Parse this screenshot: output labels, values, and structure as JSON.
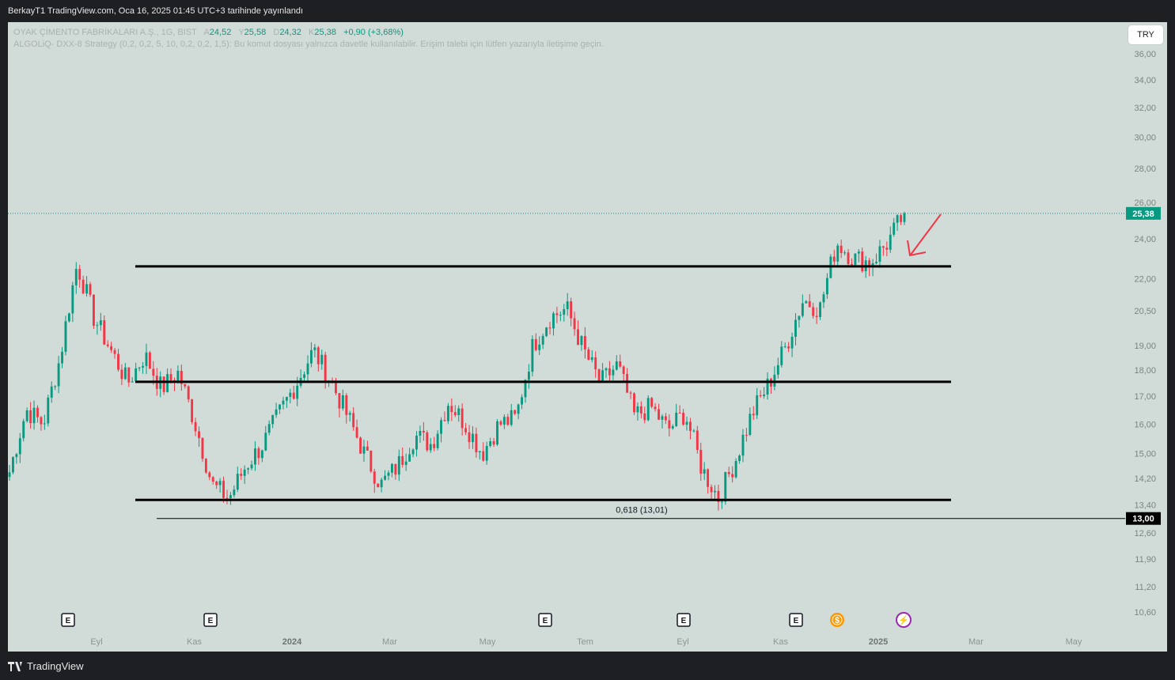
{
  "header": {
    "publish_text": "BerkayT1 TradingView.com, Oca 16, 2025 01:45 UTC+3 tarihinde yayınlandı"
  },
  "legend": {
    "symbol": "OYAK ÇİMENTO FABRİKALARI A.Ş., 1G, BIST",
    "a_label": "A",
    "a_value": "24,52",
    "y_label": "Y",
    "y_value": "25,58",
    "d_label": "D",
    "d_value": "24,32",
    "k_label": "K",
    "k_value": "25,38",
    "change": "+0,90 (+3,68%)",
    "indicator": "ALGOLiQ- DXX-8 Strategy (0,2, 0,2, 5, 10, 0,2, 0,2, 1,5): Bu komut dosyası yalnızca davetle kullanılabilir. Erişim talebi için lütfen yazarıyla iletişime geçin."
  },
  "currency_button": "TRY",
  "footer": {
    "brand": "TradingView"
  },
  "colors": {
    "up": "#089981",
    "down": "#f23645",
    "background": "#d1dbd8",
    "frame": "#1e1f23",
    "arrow": "#f23645"
  },
  "chart_data": {
    "type": "candlestick",
    "price_axis_labels": [
      "36,00",
      "34,00",
      "32,00",
      "30,00",
      "28,00",
      "26,00",
      "24,00",
      "22,00",
      "20,50",
      "19,00",
      "18,00",
      "17,00",
      "16,00",
      "15,00",
      "14,20",
      "13,40",
      "12,60",
      "11,90",
      "11,20",
      "10,60"
    ],
    "price_axis_scale": "log",
    "time_axis_labels": [
      {
        "label": "Eyl",
        "bold": false
      },
      {
        "label": "Kas",
        "bold": false
      },
      {
        "label": "2024",
        "bold": true
      },
      {
        "label": "Mar",
        "bold": false
      },
      {
        "label": "May",
        "bold": false
      },
      {
        "label": "Tem",
        "bold": false
      },
      {
        "label": "Eyl",
        "bold": false
      },
      {
        "label": "Kas",
        "bold": false
      },
      {
        "label": "2025",
        "bold": true
      },
      {
        "label": "Mar",
        "bold": false
      },
      {
        "label": "May",
        "bold": false
      }
    ],
    "last_price": {
      "value": 25.38,
      "label": "25,38"
    },
    "fib_level": {
      "text": "0,618 (13,01)",
      "value": 13.01,
      "axis_label": "13,00"
    },
    "horizontal_lines": [
      22.6,
      17.55,
      13.55
    ],
    "event_markers": [
      {
        "type": "earnings",
        "glyph": "E",
        "time": "Eyl"
      },
      {
        "type": "earnings",
        "glyph": "E",
        "time": "Kas"
      },
      {
        "type": "earnings",
        "glyph": "E",
        "time": "Tem"
      },
      {
        "type": "earnings",
        "glyph": "E",
        "time": "Eyl"
      },
      {
        "type": "earnings",
        "glyph": "E",
        "time": "Kas"
      },
      {
        "type": "dividend",
        "glyph": "$",
        "time": "Ara"
      },
      {
        "type": "split",
        "glyph": "⚡",
        "time": "Oca"
      }
    ],
    "price_path": [
      {
        "t": "Ağu",
        "p": 14.4
      },
      {
        "t": "Eyl",
        "p": 16.5
      },
      {
        "t": "Eyl",
        "p": 16.0
      },
      {
        "t": "Eki",
        "p": 18.5
      },
      {
        "t": "Eki",
        "p": 22.7
      },
      {
        "t": "Eki",
        "p": 20.2
      },
      {
        "t": "Kas",
        "p": 18.8
      },
      {
        "t": "Kas",
        "p": 17.5
      },
      {
        "t": "Kas",
        "p": 18.6
      },
      {
        "t": "Ara",
        "p": 17.3
      },
      {
        "t": "Ara",
        "p": 17.9
      },
      {
        "t": "Ara",
        "p": 16.0
      },
      {
        "t": "Ara",
        "p": 14.0
      },
      {
        "t": "2024",
        "p": 13.6
      },
      {
        "t": "Oca",
        "p": 14.6
      },
      {
        "t": "Oca",
        "p": 15.3
      },
      {
        "t": "Şub",
        "p": 16.4
      },
      {
        "t": "Şub",
        "p": 17.5
      },
      {
        "t": "Mar",
        "p": 18.8
      },
      {
        "t": "Mar",
        "p": 17.6
      },
      {
        "t": "Mar",
        "p": 16.3
      },
      {
        "t": "Nis",
        "p": 15.0
      },
      {
        "t": "Nis",
        "p": 14.0
      },
      {
        "t": "Nis",
        "p": 14.6
      },
      {
        "t": "May",
        "p": 15.6
      },
      {
        "t": "May",
        "p": 15.3
      },
      {
        "t": "May",
        "p": 16.8
      },
      {
        "t": "Haz",
        "p": 16.0
      },
      {
        "t": "Haz",
        "p": 15.0
      },
      {
        "t": "Haz",
        "p": 16.0
      },
      {
        "t": "Tem",
        "p": 16.2
      },
      {
        "t": "Tem",
        "p": 19.0
      },
      {
        "t": "Tem",
        "p": 20.2
      },
      {
        "t": "Ağu",
        "p": 20.6
      },
      {
        "t": "Ağu",
        "p": 18.8
      },
      {
        "t": "Ağu",
        "p": 17.5
      },
      {
        "t": "Eyl",
        "p": 18.2
      },
      {
        "t": "Eyl",
        "p": 16.3
      },
      {
        "t": "Eyl",
        "p": 16.6
      },
      {
        "t": "Eki",
        "p": 15.8
      },
      {
        "t": "Eki",
        "p": 16.4
      },
      {
        "t": "Eki",
        "p": 14.5
      },
      {
        "t": "Kas",
        "p": 13.6
      },
      {
        "t": "Kas",
        "p": 14.8
      },
      {
        "t": "Kas",
        "p": 16.4
      },
      {
        "t": "Kas",
        "p": 17.5
      },
      {
        "t": "Ara",
        "p": 19.0
      },
      {
        "t": "Ara",
        "p": 21.0
      },
      {
        "t": "Ara",
        "p": 20.6
      },
      {
        "t": "Ara",
        "p": 23.8
      },
      {
        "t": "2025",
        "p": 23.0
      },
      {
        "t": "Oca",
        "p": 22.8
      },
      {
        "t": "Oca",
        "p": 23.8
      },
      {
        "t": "Oca",
        "p": 25.38
      }
    ]
  }
}
